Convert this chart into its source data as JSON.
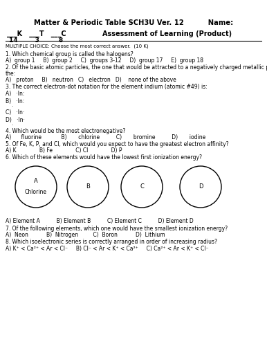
{
  "title1": "Matter & Periodic Table SCH3U Ver. 12          Name:",
  "ktc_line": "___K   ___T   ___C",
  "assessment": "Assessment of Learning (Product)",
  "ktc_nums": "14        3         8",
  "header": "MULTIPLE CHOICE: Choose the most correct answer.  (10 K)",
  "q1a": "1. Which chemical group is called the halogens?",
  "q1b": "A)  group 1     B)  group 2     C)  groups 3-12     D)  group 17     E)  group 18",
  "q2a": "2. Of the basic atomic particles, the one that would be attracted to a negatively charged metallic plate is",
  "q2b": "the:",
  "q2c": "A)   proton     B)   neutron   C)   electron   D)    none of the above",
  "q3a": "3. The correct electron-dot notation for the element indium (atomic #49) is:",
  "q3A": "A)   ·In:",
  "q3B": "B)   ·In:",
  "q3C": "C)   ·In·",
  "q3D": "D)   ·In·",
  "q4a": "4. Which would be the most electronegative?",
  "q4b": "A)      fluorine            B)       chlorine          C)       bromine          D)       iodine",
  "q5a": "5. Of Fe, K, P, and Cl, which would you expect to have the greatest electron affinity?",
  "q5b": "A) K              B) Fe              C) Cl              D) P",
  "q6a": "6. Which of these elements would have the lowest first ionization energy?",
  "q6_ans": "A) Element A          B) Element B          C) Element C          D) Element D",
  "q7a": "7. Of the following elements, which one would have the smallest ionization energy?",
  "q7b": "A)  Neon           B)  Nitrogen         C)  Boron           D)  Lithium",
  "q8a": "8. Which isoelectronic series is correctly arranged in order of increasing radius?",
  "q8b": "A) K⁺ < Ca²⁺ < Ar < Cl⁻     B) Cl⁻ < Ar < K⁺ < Ca²⁺     C) Ca²⁺ < Ar < K⁺ < Cl⁻",
  "bg": "#ffffff",
  "fg": "#000000"
}
